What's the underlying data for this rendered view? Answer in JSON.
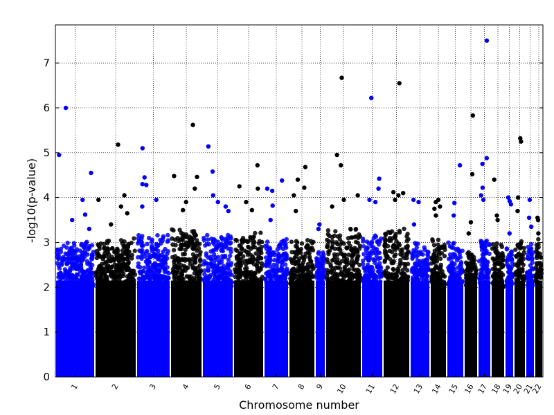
{
  "chart_data": {
    "type": "scatter",
    "title": "",
    "xlabel": "Chromosome number",
    "ylabel": "-log10(p-value)",
    "ylim": [
      0,
      7.85
    ],
    "yticks": [
      0,
      1,
      2,
      3,
      4,
      5,
      6,
      7
    ],
    "grid": true,
    "legend": "none",
    "colors": {
      "odd": "#0000ff",
      "even": "#000000"
    },
    "chromosomes": [
      {
        "label": "1",
        "bulk_max": 2.8,
        "peaks": [
          6.0,
          4.95,
          4.55,
          3.95,
          3.62,
          3.5,
          3.3
        ]
      },
      {
        "label": "2",
        "bulk_max": 2.9,
        "peaks": [
          5.18,
          4.05,
          3.95,
          3.8,
          3.65,
          3.4
        ]
      },
      {
        "label": "3",
        "bulk_max": 3.0,
        "peaks": [
          5.1,
          4.45,
          4.3,
          4.28,
          3.95,
          3.8
        ]
      },
      {
        "label": "4",
        "bulk_max": 3.1,
        "peaks": [
          5.62,
          4.48,
          4.46,
          4.2,
          3.9,
          3.72
        ]
      },
      {
        "label": "5",
        "bulk_max": 3.0,
        "peaks": [
          5.14,
          4.58,
          4.05,
          3.9,
          3.8,
          3.7
        ]
      },
      {
        "label": "6",
        "bulk_max": 3.0,
        "peaks": [
          4.72,
          4.25,
          4.2,
          3.9,
          3.72
        ]
      },
      {
        "label": "7",
        "bulk_max": 2.9,
        "peaks": [
          4.38,
          4.2,
          4.15,
          3.82,
          3.5
        ]
      },
      {
        "label": "8",
        "bulk_max": 2.9,
        "peaks": [
          4.68,
          4.4,
          4.22,
          4.05,
          3.7
        ]
      },
      {
        "label": "9",
        "bulk_max": 2.7,
        "peaks": [
          3.4,
          3.3
        ]
      },
      {
        "label": "10",
        "bulk_max": 3.1,
        "peaks": [
          6.67,
          4.95,
          4.72,
          4.05,
          3.95,
          3.8
        ]
      },
      {
        "label": "11",
        "bulk_max": 3.0,
        "peaks": [
          6.22,
          4.42,
          4.2,
          3.95,
          3.9
        ]
      },
      {
        "label": "12",
        "bulk_max": 3.1,
        "peaks": [
          6.55,
          4.12,
          4.1,
          4.05,
          3.95
        ]
      },
      {
        "label": "13",
        "bulk_max": 2.8,
        "peaks": [
          3.95,
          3.9,
          3.4
        ]
      },
      {
        "label": "14",
        "bulk_max": 2.9,
        "peaks": [
          3.95,
          3.9,
          3.8,
          3.75,
          3.6
        ]
      },
      {
        "label": "15",
        "bulk_max": 2.8,
        "peaks": [
          4.72,
          3.88,
          3.6
        ]
      },
      {
        "label": "16",
        "bulk_max": 2.7,
        "peaks": [
          5.83,
          4.52,
          3.45,
          3.2
        ]
      },
      {
        "label": "17",
        "bulk_max": 2.9,
        "peaks": [
          7.5,
          4.88,
          4.75,
          4.22,
          4.05,
          3.95
        ]
      },
      {
        "label": "18",
        "bulk_max": 2.8,
        "peaks": [
          4.4,
          3.6,
          3.5
        ]
      },
      {
        "label": "19",
        "bulk_max": 2.7,
        "peaks": [
          4.0,
          3.92,
          3.85,
          3.2
        ]
      },
      {
        "label": "20",
        "bulk_max": 2.9,
        "peaks": [
          5.32,
          5.25,
          4.0,
          3.7
        ]
      },
      {
        "label": "21",
        "bulk_max": 2.8,
        "peaks": [
          3.95,
          3.55,
          3.35
        ]
      },
      {
        "label": "22",
        "bulk_max": 2.9,
        "peaks": [
          3.55,
          3.5,
          3.2
        ]
      }
    ]
  }
}
